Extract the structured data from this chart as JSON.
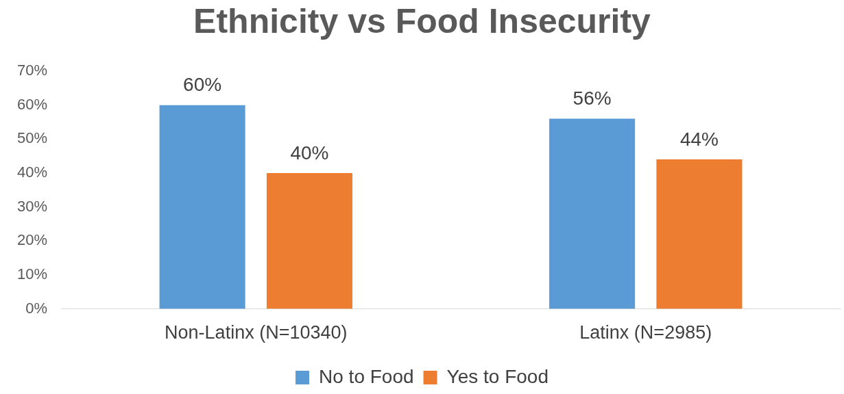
{
  "chart_data": {
    "type": "bar",
    "title": "Ethnicity vs Food Insecurity",
    "categories": [
      "Non-Latinx (N=10340)",
      "Latinx (N=2985)"
    ],
    "series": [
      {
        "name": "No to Food",
        "color": "#5b9bd5",
        "values": [
          60,
          56
        ],
        "value_labels": [
          "60%",
          "56%"
        ]
      },
      {
        "name": "Yes to Food",
        "color": "#ed7d31",
        "values": [
          40,
          44
        ],
        "value_labels": [
          "40%",
          "44%"
        ]
      }
    ],
    "ylim": [
      0,
      70
    ],
    "yticks": [
      {
        "value": 0,
        "label": "0%"
      },
      {
        "value": 10,
        "label": "10%"
      },
      {
        "value": 20,
        "label": "20%"
      },
      {
        "value": 30,
        "label": "30%"
      },
      {
        "value": 40,
        "label": "40%"
      },
      {
        "value": 50,
        "label": "50%"
      },
      {
        "value": 60,
        "label": "60%"
      },
      {
        "value": 70,
        "label": "70%"
      }
    ],
    "grid": false,
    "legend": "bottom"
  }
}
